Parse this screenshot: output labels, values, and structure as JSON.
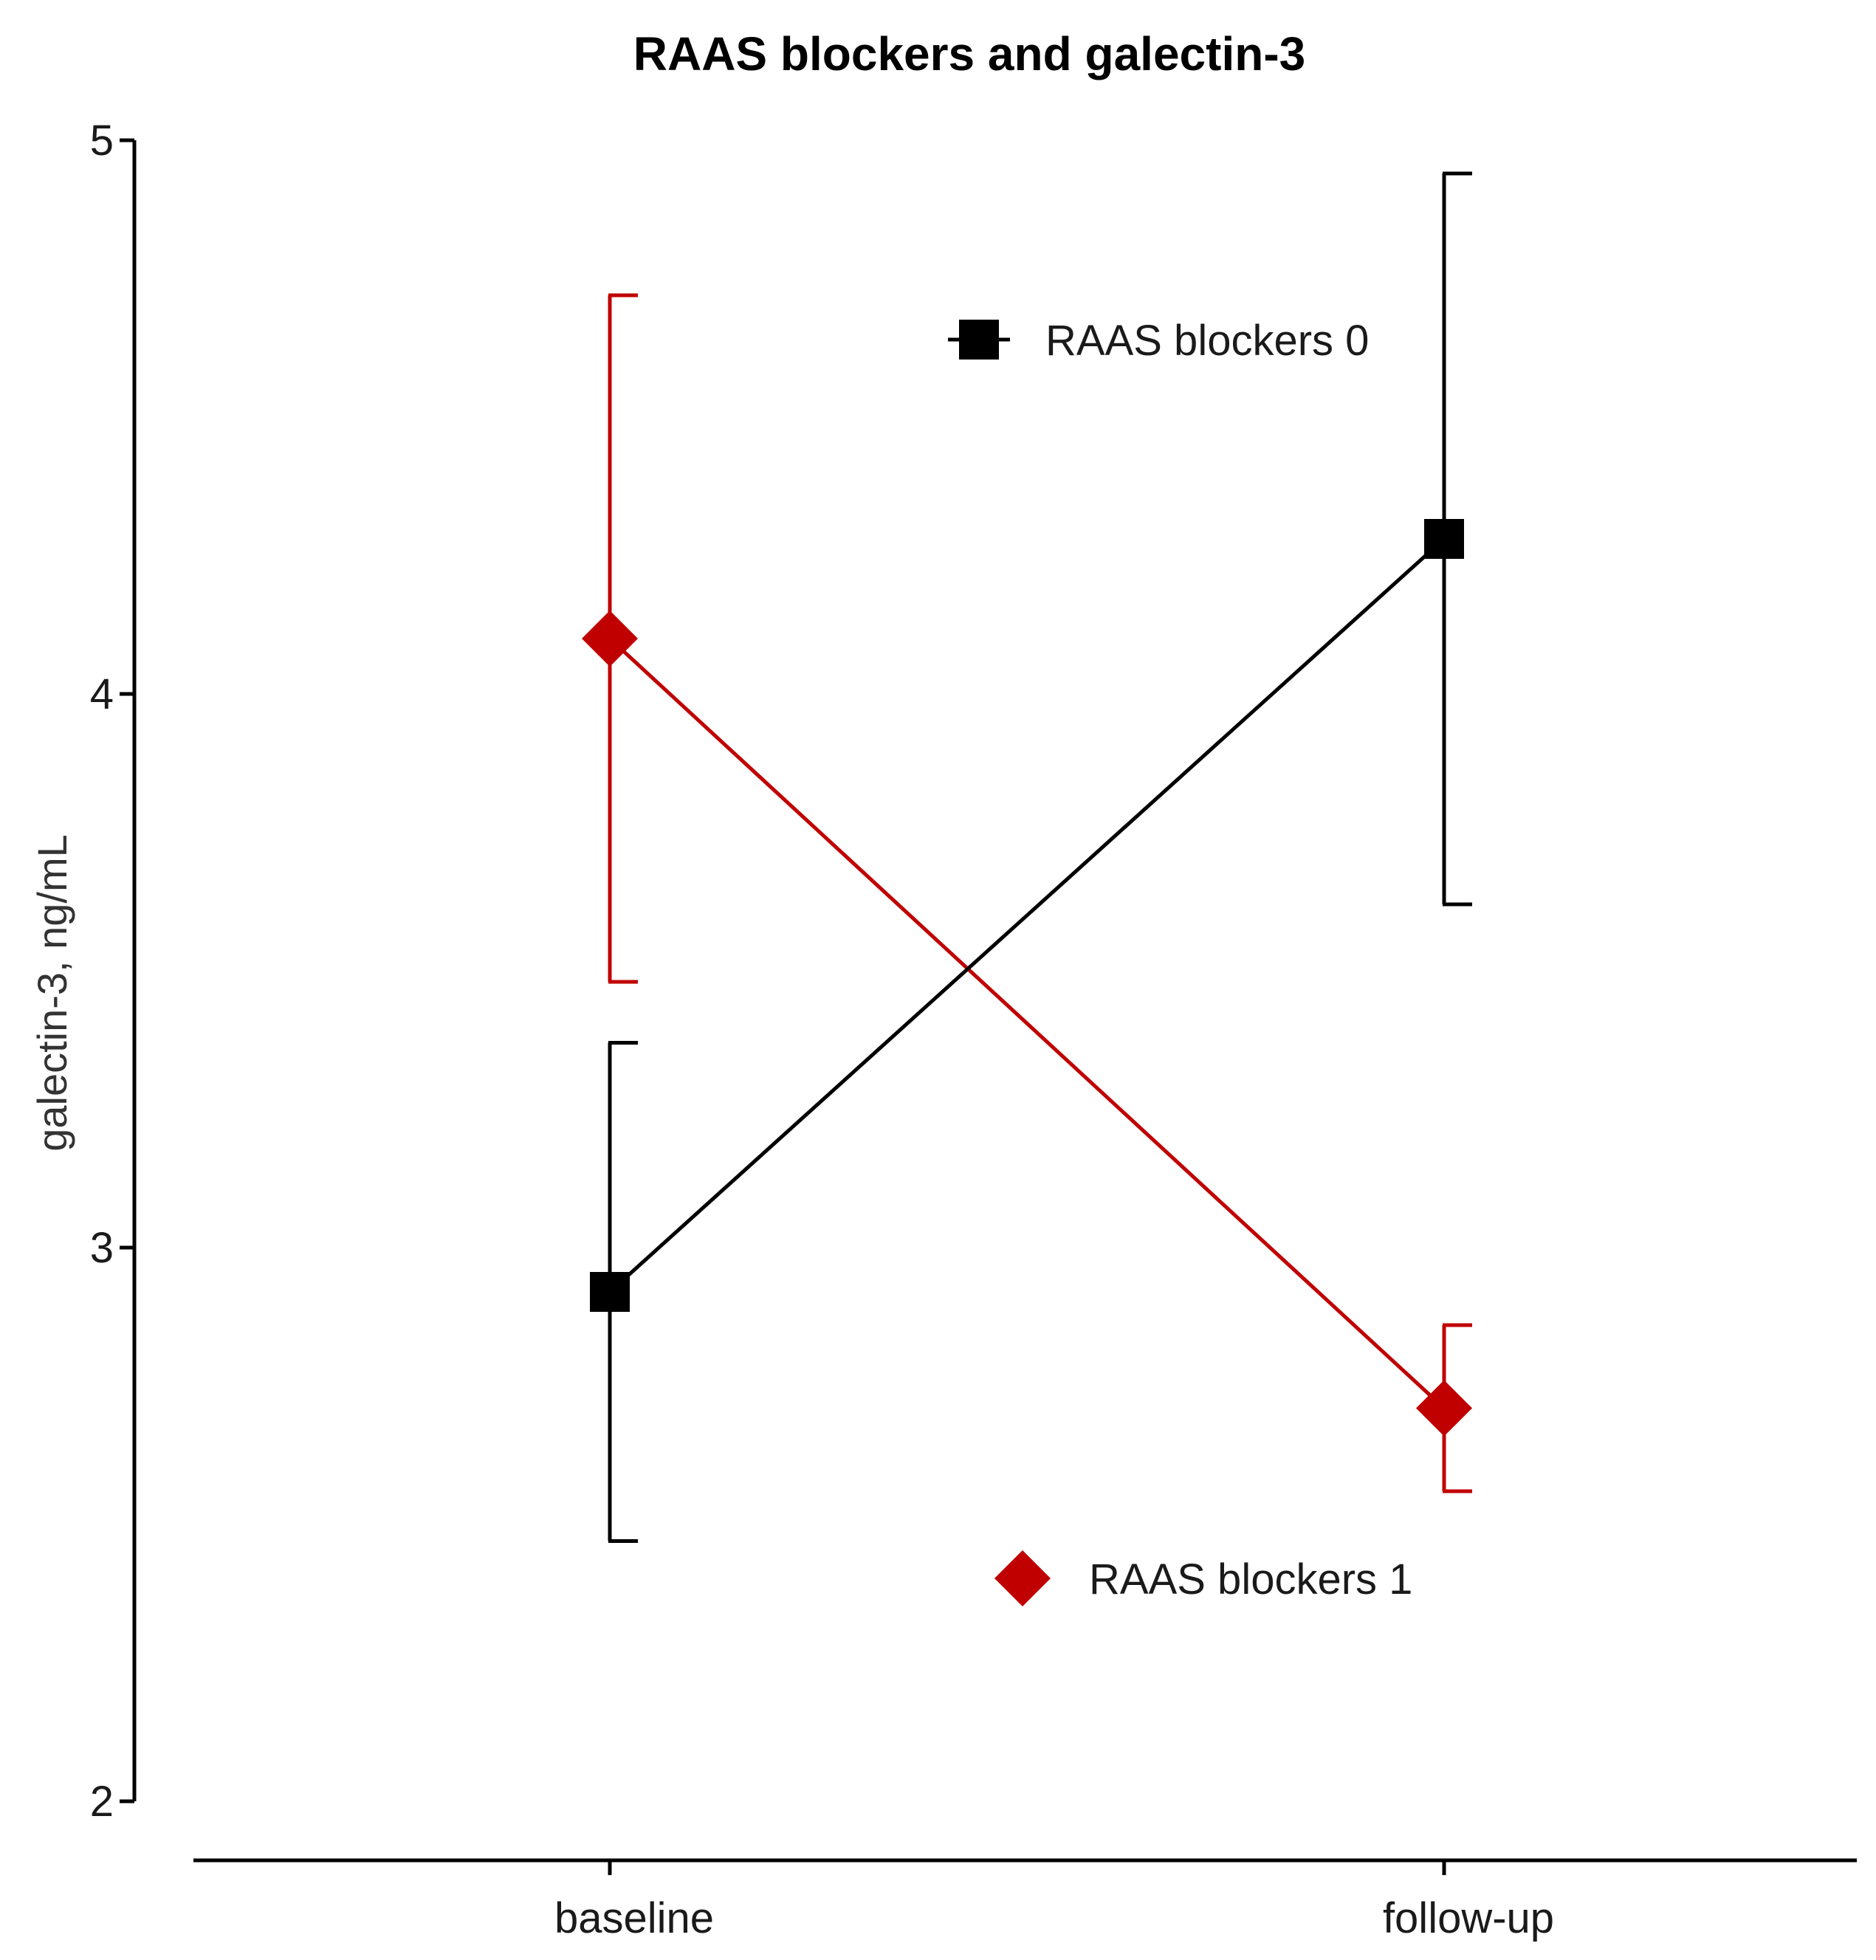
{
  "chart_data": {
    "type": "line",
    "title": "RAAS blockers and galectin-3",
    "xlabel": "",
    "ylabel": "galectin-3, ng/mL",
    "categories": [
      "baseline",
      "follow-up"
    ],
    "ylim": [
      2,
      5
    ],
    "yticks": [
      "2",
      "3",
      "4",
      "5"
    ],
    "grid": false,
    "series": [
      {
        "name": "RAAS blockers 0",
        "color": "#000000",
        "marker": "square",
        "values": [
          2.92,
          4.28
        ],
        "err_low": [
          2.47,
          3.62
        ],
        "err_high": [
          3.37,
          4.94
        ]
      },
      {
        "name": "RAAS blockers 1",
        "color": "#c00000",
        "marker": "diamond",
        "values": [
          4.1,
          2.71
        ],
        "err_low": [
          3.48,
          2.56
        ],
        "err_high": [
          4.72,
          2.86
        ]
      }
    ]
  }
}
